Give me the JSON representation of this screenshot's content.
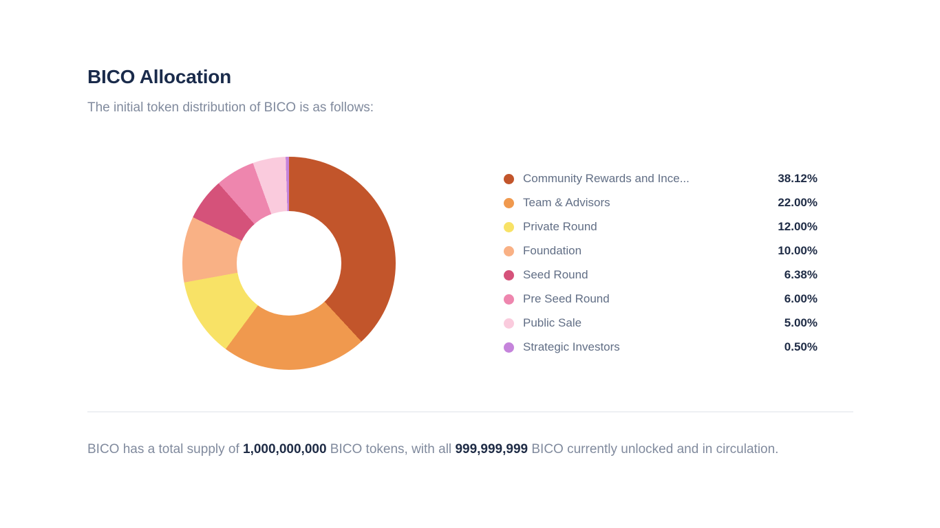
{
  "page": {
    "title": "BICO Allocation",
    "subtitle": "The initial token distribution of BICO is as follows:"
  },
  "chart_data": {
    "type": "pie",
    "variant": "donut",
    "title": "BICO Allocation",
    "legend_position": "right",
    "start_angle_deg": 0,
    "direction": "clockwise",
    "categories": [
      "Community Rewards and Ince...",
      "Team & Advisors",
      "Private Round",
      "Foundation",
      "Seed Round",
      "Pre Seed Round",
      "Public Sale",
      "Strategic Investors"
    ],
    "values": [
      38.12,
      22.0,
      12.0,
      10.0,
      6.38,
      6.0,
      5.0,
      0.5
    ],
    "value_labels": [
      "38.12%",
      "22.00%",
      "12.00%",
      "10.00%",
      "6.38%",
      "6.00%",
      "5.00%",
      "0.50%"
    ],
    "colors": [
      "#c2552b",
      "#f0994e",
      "#f8e266",
      "#f9b185",
      "#d5527a",
      "#ee86ae",
      "#facbdd",
      "#c584db"
    ]
  },
  "footer": {
    "segments": [
      {
        "text": "BICO has a total supply of ",
        "bold": false
      },
      {
        "text": "1,000,000,000",
        "bold": true
      },
      {
        "text": " BICO tokens, with all ",
        "bold": false
      },
      {
        "text": "999,999,999",
        "bold": true
      },
      {
        "text": " BICO currently unlocked and in circulation.",
        "bold": false
      }
    ]
  }
}
